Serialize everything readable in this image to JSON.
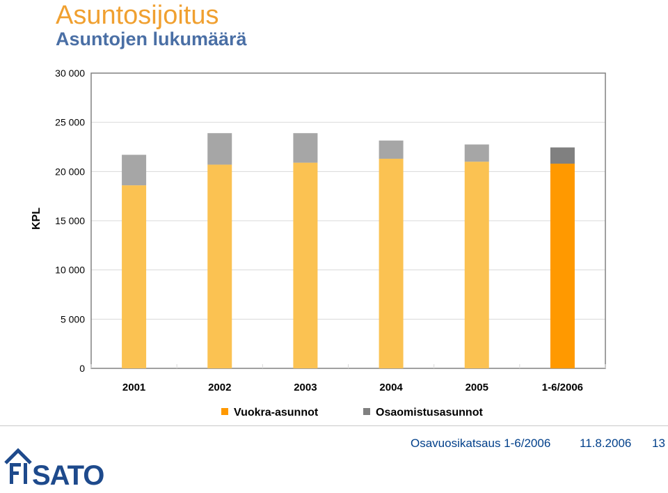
{
  "header": {
    "title": "Asuntosijoitus",
    "subtitle": "Asuntojen lukumäärä"
  },
  "chart_data": {
    "type": "bar",
    "stacked": true,
    "ylabel": "KPL",
    "ylim": [
      0,
      30000
    ],
    "yticks": [
      0,
      5000,
      10000,
      15000,
      20000,
      25000,
      30000
    ],
    "ytick_labels": [
      "0",
      "5 000",
      "10 000",
      "15 000",
      "20 000",
      "25 000",
      "30 000"
    ],
    "grid": true,
    "legend_position": "bottom",
    "categories": [
      "2001",
      "2002",
      "2003",
      "2004",
      "2005",
      "1-6/2006"
    ],
    "series": [
      {
        "name": "Vuokra-asunnot",
        "color": "#fbc252",
        "highlight_color": "#ff9900",
        "values": [
          18600,
          20700,
          20900,
          21300,
          21000,
          20800
        ]
      },
      {
        "name": "Osaomistusasunnot",
        "color": "#a6a6a6",
        "highlight_color": "#808080",
        "values": [
          3100,
          3200,
          3000,
          1850,
          1750,
          1650
        ]
      }
    ],
    "highlighted_category": "1-6/2006"
  },
  "footer": {
    "label": "Osavuosikatsaus 1-6/2006",
    "date": "11.8.2006",
    "page": "13"
  },
  "logo": {
    "text": "SATO",
    "icon": "sato-house-icon",
    "color": "#1e4a8c"
  }
}
